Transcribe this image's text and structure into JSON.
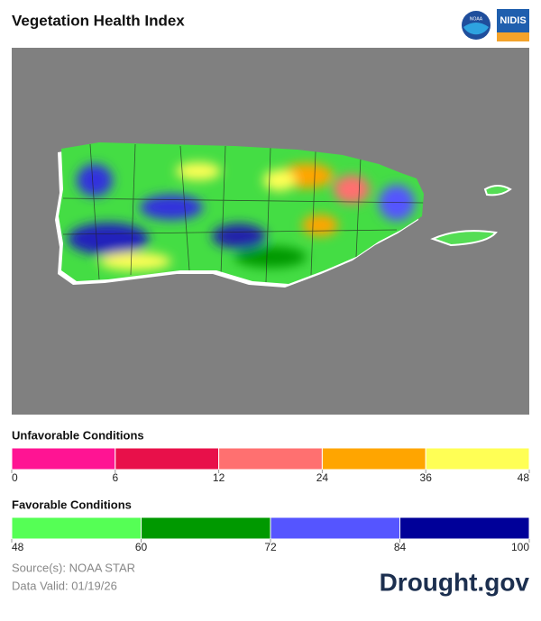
{
  "header": {
    "title": "Vegetation Health Index",
    "logos": [
      "NOAA",
      "NIDIS"
    ]
  },
  "legends": [
    {
      "title": "Unfavorable Conditions",
      "breaks": [
        0,
        6,
        12,
        24,
        36,
        48
      ],
      "colors": [
        "#ff1493",
        "#e8104a",
        "#ff7070",
        "#ffa500",
        "#ffff55"
      ]
    },
    {
      "title": "Favorable Conditions",
      "breaks": [
        48,
        60,
        72,
        84,
        100
      ],
      "colors": [
        "#55ff55",
        "#009900",
        "#5555ff",
        "#000099"
      ]
    }
  ],
  "footer": {
    "source": "Source(s): NOAA STAR",
    "valid": "Data Valid: 01/19/26",
    "brand": "Drought.gov"
  }
}
